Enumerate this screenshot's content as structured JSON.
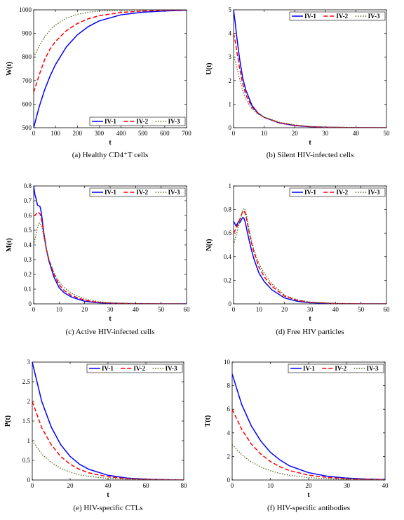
{
  "colors": {
    "IV-1": "#0000ff",
    "IV-2": "#ff0000",
    "IV-3": "#4d6a1f"
  },
  "series_styles": {
    "IV-1": "solid",
    "IV-2": "dashed",
    "IV-3": "dotted"
  },
  "chart_data": [
    {
      "type": "line",
      "caption": "(a)  Healthy CD4⁺T cells",
      "xlabel": "t",
      "ylabel": "W(t)",
      "xlim": [
        0,
        700
      ],
      "ylim": [
        500,
        1000
      ],
      "xticks": [
        0,
        100,
        200,
        300,
        400,
        500,
        600,
        700
      ],
      "yticks": [
        500,
        600,
        700,
        800,
        900,
        1000
      ],
      "grid": false,
      "legend": "bottom-right",
      "series": [
        {
          "name": "IV-1",
          "x": [
            0,
            25,
            50,
            75,
            100,
            150,
            200,
            250,
            300,
            400,
            500,
            600,
            700
          ],
          "y": [
            500,
            588,
            660,
            719,
            768,
            843,
            894,
            929,
            953,
            979,
            990,
            995,
            998
          ]
        },
        {
          "name": "IV-2",
          "x": [
            0,
            25,
            50,
            75,
            100,
            150,
            200,
            250,
            300,
            400,
            500,
            600,
            700
          ],
          "y": [
            650,
            723,
            788,
            834,
            866,
            912,
            942,
            962,
            975,
            989,
            995,
            998,
            999
          ]
        },
        {
          "name": "IV-3",
          "x": [
            0,
            25,
            50,
            75,
            100,
            150,
            200,
            250,
            300,
            400,
            500,
            600,
            700
          ],
          "y": [
            800,
            846,
            885,
            914,
            936,
            965,
            981,
            990,
            995,
            998,
            999,
            1000,
            1000
          ]
        }
      ]
    },
    {
      "type": "line",
      "caption": "(b)  Silent HIV-infected cells",
      "xlabel": "t",
      "ylabel": "U(t)",
      "xlim": [
        0,
        50
      ],
      "ylim": [
        0,
        5
      ],
      "xticks": [
        0,
        10,
        20,
        30,
        40,
        50
      ],
      "yticks": [
        0,
        1,
        2,
        3,
        4,
        5
      ],
      "grid": false,
      "legend": "top-right",
      "series": [
        {
          "name": "IV-1",
          "x": [
            0,
            0.5,
            1,
            2,
            3,
            4,
            6,
            8,
            10,
            15,
            20,
            25,
            30,
            40,
            50
          ],
          "y": [
            5,
            4.5,
            3.9,
            2.9,
            2.1,
            1.6,
            0.95,
            0.62,
            0.44,
            0.2,
            0.09,
            0.04,
            0.02,
            0.005,
            0
          ]
        },
        {
          "name": "IV-2",
          "x": [
            0,
            0.5,
            1,
            2,
            3,
            4,
            6,
            8,
            10,
            15,
            20,
            25,
            30,
            40,
            50
          ],
          "y": [
            4,
            3.7,
            3.3,
            2.5,
            1.85,
            1.4,
            0.88,
            0.6,
            0.44,
            0.21,
            0.1,
            0.045,
            0.02,
            0.005,
            0
          ]
        },
        {
          "name": "IV-3",
          "x": [
            0,
            0.5,
            1,
            2,
            3,
            4,
            6,
            8,
            10,
            15,
            20,
            25,
            30,
            40,
            50
          ],
          "y": [
            3,
            2.85,
            2.6,
            2.05,
            1.55,
            1.2,
            0.8,
            0.58,
            0.45,
            0.23,
            0.12,
            0.055,
            0.025,
            0.006,
            0
          ]
        }
      ]
    },
    {
      "type": "line",
      "caption": "(c)  Active HIV-infected cells",
      "xlabel": "t",
      "ylabel": "M(t)",
      "xlim": [
        0,
        60
      ],
      "ylim": [
        0,
        0.8
      ],
      "xticks": [
        0,
        10,
        20,
        30,
        40,
        50,
        60
      ],
      "yticks": [
        0,
        0.1,
        0.2,
        0.3,
        0.4,
        0.5,
        0.6,
        0.7,
        0.8
      ],
      "grid": false,
      "legend": "top-right",
      "series": [
        {
          "name": "IV-1",
          "x": [
            0,
            0.5,
            1,
            1.5,
            2,
            2.5,
            3,
            3.5,
            4,
            5,
            6,
            8,
            10,
            12,
            15,
            20,
            25,
            30,
            40,
            50,
            60
          ],
          "y": [
            0.8,
            0.74,
            0.71,
            0.67,
            0.665,
            0.66,
            0.62,
            0.55,
            0.48,
            0.37,
            0.29,
            0.18,
            0.11,
            0.075,
            0.045,
            0.018,
            0.008,
            0.004,
            0.001,
            0,
            0
          ]
        },
        {
          "name": "IV-2",
          "x": [
            0,
            0.5,
            1,
            1.5,
            2,
            2.5,
            3,
            3.5,
            4,
            5,
            6,
            8,
            10,
            12,
            15,
            20,
            25,
            30,
            40,
            50,
            60
          ],
          "y": [
            0.6,
            0.6,
            0.61,
            0.62,
            0.62,
            0.61,
            0.58,
            0.53,
            0.47,
            0.37,
            0.3,
            0.2,
            0.13,
            0.09,
            0.055,
            0.025,
            0.011,
            0.005,
            0.001,
            0,
            0
          ]
        },
        {
          "name": "IV-3",
          "x": [
            0,
            0.5,
            1,
            1.5,
            2,
            2.5,
            3,
            3.5,
            4,
            5,
            6,
            8,
            10,
            12,
            15,
            20,
            25,
            30,
            40,
            50,
            60
          ],
          "y": [
            0.4,
            0.44,
            0.48,
            0.52,
            0.545,
            0.55,
            0.53,
            0.5,
            0.45,
            0.37,
            0.3,
            0.21,
            0.15,
            0.11,
            0.07,
            0.035,
            0.016,
            0.007,
            0.002,
            0,
            0
          ]
        }
      ]
    },
    {
      "type": "line",
      "caption": "(d)  Free HIV particles",
      "xlabel": "t",
      "ylabel": "N(t)",
      "xlim": [
        0,
        60
      ],
      "ylim": [
        0,
        1
      ],
      "xticks": [
        0,
        10,
        20,
        30,
        40,
        50,
        60
      ],
      "yticks": [
        0,
        0.2,
        0.4,
        0.6,
        0.8,
        1
      ],
      "grid": false,
      "legend": "top-right",
      "series": [
        {
          "name": "IV-1",
          "x": [
            0,
            0.5,
            1,
            1.5,
            2,
            2.5,
            3,
            3.5,
            4,
            4.5,
            5,
            6,
            7,
            8,
            10,
            12,
            15,
            20,
            25,
            30,
            40,
            50,
            60
          ],
          "y": [
            0.7,
            0.68,
            0.66,
            0.68,
            0.7,
            0.69,
            0.71,
            0.73,
            0.73,
            0.7,
            0.65,
            0.55,
            0.46,
            0.38,
            0.26,
            0.19,
            0.12,
            0.05,
            0.022,
            0.01,
            0.002,
            0,
            0
          ]
        },
        {
          "name": "IV-2",
          "x": [
            0,
            0.5,
            1,
            1.5,
            2,
            2.5,
            3,
            3.5,
            4,
            4.5,
            5,
            6,
            7,
            8,
            10,
            12,
            15,
            20,
            25,
            30,
            40,
            50,
            60
          ],
          "y": [
            0.6,
            0.62,
            0.64,
            0.66,
            0.69,
            0.72,
            0.75,
            0.78,
            0.79,
            0.77,
            0.73,
            0.62,
            0.52,
            0.44,
            0.31,
            0.23,
            0.15,
            0.065,
            0.03,
            0.013,
            0.003,
            0,
            0
          ]
        },
        {
          "name": "IV-3",
          "x": [
            0,
            0.5,
            1,
            1.5,
            2,
            2.5,
            3,
            3.5,
            4,
            4.5,
            5,
            6,
            7,
            8,
            10,
            12,
            15,
            20,
            25,
            30,
            40,
            50,
            60
          ],
          "y": [
            0.5,
            0.54,
            0.58,
            0.62,
            0.66,
            0.7,
            0.74,
            0.79,
            0.81,
            0.8,
            0.76,
            0.64,
            0.54,
            0.46,
            0.34,
            0.26,
            0.17,
            0.075,
            0.035,
            0.015,
            0.003,
            0,
            0
          ]
        }
      ]
    },
    {
      "type": "line",
      "caption": "(e)  HIV-specific CTLs",
      "xlabel": "t",
      "ylabel": "P(t)",
      "xlim": [
        0,
        80
      ],
      "ylim": [
        0,
        3
      ],
      "xticks": [
        0,
        20,
        40,
        60,
        80
      ],
      "yticks": [
        0,
        0.5,
        1,
        1.5,
        2,
        2.5,
        3
      ],
      "grid": false,
      "legend": "top-right",
      "series": [
        {
          "name": "IV-1",
          "x": [
            0,
            5,
            10,
            15,
            20,
            25,
            30,
            40,
            50,
            60,
            70,
            80
          ],
          "y": [
            3,
            2.0,
            1.35,
            0.9,
            0.6,
            0.4,
            0.27,
            0.12,
            0.05,
            0.02,
            0.01,
            0
          ]
        },
        {
          "name": "IV-2",
          "x": [
            0,
            5,
            10,
            15,
            20,
            25,
            30,
            40,
            50,
            60,
            70,
            80
          ],
          "y": [
            2,
            1.33,
            0.9,
            0.6,
            0.4,
            0.27,
            0.18,
            0.08,
            0.035,
            0.015,
            0.006,
            0
          ]
        },
        {
          "name": "IV-3",
          "x": [
            0,
            5,
            10,
            15,
            20,
            25,
            30,
            40,
            50,
            60,
            70,
            80
          ],
          "y": [
            1,
            0.66,
            0.45,
            0.3,
            0.2,
            0.13,
            0.09,
            0.04,
            0.018,
            0.008,
            0.003,
            0
          ]
        }
      ]
    },
    {
      "type": "line",
      "caption": "(f)  HIV-specific antibodies",
      "xlabel": "t",
      "ylabel": "T(t)",
      "xlim": [
        0,
        40
      ],
      "ylim": [
        0,
        10
      ],
      "xticks": [
        0,
        10,
        20,
        30,
        40
      ],
      "yticks": [
        0,
        2,
        4,
        6,
        8,
        10
      ],
      "grid": false,
      "legend": "top-right",
      "series": [
        {
          "name": "IV-1",
          "x": [
            0,
            2.5,
            5,
            7.5,
            10,
            12.5,
            15,
            20,
            25,
            30,
            35,
            40
          ],
          "y": [
            9,
            6.4,
            4.6,
            3.3,
            2.35,
            1.7,
            1.2,
            0.62,
            0.31,
            0.16,
            0.08,
            0.04
          ]
        },
        {
          "name": "IV-2",
          "x": [
            0,
            2.5,
            5,
            7.5,
            10,
            12.5,
            15,
            20,
            25,
            30,
            35,
            40
          ],
          "y": [
            6,
            4.3,
            3.05,
            2.2,
            1.57,
            1.12,
            0.8,
            0.41,
            0.21,
            0.1,
            0.05,
            0.03
          ]
        },
        {
          "name": "IV-3",
          "x": [
            0,
            2.5,
            5,
            7.5,
            10,
            12.5,
            15,
            20,
            25,
            30,
            35,
            40
          ],
          "y": [
            3,
            2.15,
            1.53,
            1.1,
            0.78,
            0.56,
            0.4,
            0.2,
            0.1,
            0.05,
            0.03,
            0.01
          ]
        }
      ]
    }
  ]
}
